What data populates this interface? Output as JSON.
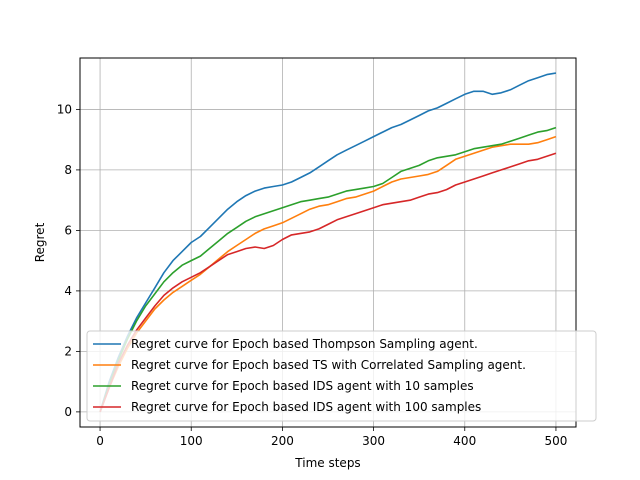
{
  "chart_data": {
    "type": "line",
    "title": "",
    "xlabel": "Time steps",
    "ylabel": "Regret",
    "xlim": [
      -22,
      522
    ],
    "ylim": [
      -0.5,
      11.7
    ],
    "xticks": [
      0,
      100,
      200,
      300,
      400,
      500
    ],
    "yticks": [
      0,
      2,
      4,
      6,
      8,
      10
    ],
    "grid": true,
    "legend_position": "lower-right",
    "series": [
      {
        "name": "Regret curve for Epoch based Thompson Sampling agent.",
        "color": "#1f77b4",
        "x": [
          0,
          10,
          20,
          30,
          40,
          50,
          60,
          70,
          80,
          90,
          100,
          110,
          120,
          130,
          140,
          150,
          160,
          170,
          180,
          190,
          200,
          210,
          220,
          230,
          240,
          250,
          260,
          270,
          280,
          290,
          300,
          310,
          320,
          330,
          340,
          350,
          360,
          370,
          380,
          390,
          400,
          410,
          420,
          430,
          440,
          450,
          460,
          470,
          480,
          490,
          500
        ],
        "values": [
          0.0,
          1.0,
          1.8,
          2.5,
          3.1,
          3.6,
          4.1,
          4.6,
          5.0,
          5.3,
          5.6,
          5.8,
          6.1,
          6.4,
          6.7,
          6.95,
          7.15,
          7.3,
          7.4,
          7.45,
          7.5,
          7.6,
          7.75,
          7.9,
          8.1,
          8.3,
          8.5,
          8.65,
          8.8,
          8.95,
          9.1,
          9.25,
          9.4,
          9.5,
          9.65,
          9.8,
          9.95,
          10.05,
          10.2,
          10.35,
          10.5,
          10.6,
          10.6,
          10.5,
          10.55,
          10.65,
          10.8,
          10.95,
          11.05,
          11.15,
          11.2
        ]
      },
      {
        "name": "Regret curve for Epoch based TS with Correlated Sampling agent.",
        "color": "#ff7f0e",
        "x": [
          0,
          10,
          20,
          30,
          40,
          50,
          60,
          70,
          80,
          90,
          100,
          110,
          120,
          130,
          140,
          150,
          160,
          170,
          180,
          190,
          200,
          210,
          220,
          230,
          240,
          250,
          260,
          270,
          280,
          290,
          300,
          310,
          320,
          330,
          340,
          350,
          360,
          370,
          380,
          390,
          400,
          410,
          420,
          430,
          440,
          450,
          460,
          470,
          480,
          490,
          500
        ],
        "values": [
          0.0,
          0.8,
          1.5,
          2.1,
          2.6,
          3.0,
          3.4,
          3.7,
          3.95,
          4.15,
          4.35,
          4.55,
          4.8,
          5.05,
          5.3,
          5.5,
          5.7,
          5.9,
          6.05,
          6.15,
          6.25,
          6.4,
          6.55,
          6.7,
          6.8,
          6.85,
          6.95,
          7.05,
          7.1,
          7.2,
          7.3,
          7.45,
          7.6,
          7.7,
          7.75,
          7.8,
          7.85,
          7.95,
          8.15,
          8.35,
          8.45,
          8.55,
          8.65,
          8.75,
          8.8,
          8.85,
          8.85,
          8.85,
          8.9,
          9.0,
          9.1
        ]
      },
      {
        "name": "Regret curve for Epoch based IDS agent with 10 samples",
        "color": "#2ca02c",
        "x": [
          0,
          10,
          20,
          30,
          40,
          50,
          60,
          70,
          80,
          90,
          100,
          110,
          120,
          130,
          140,
          150,
          160,
          170,
          180,
          190,
          200,
          210,
          220,
          230,
          240,
          250,
          260,
          270,
          280,
          290,
          300,
          310,
          320,
          330,
          340,
          350,
          360,
          370,
          380,
          390,
          400,
          410,
          420,
          430,
          440,
          450,
          460,
          470,
          480,
          490,
          500
        ],
        "values": [
          0.0,
          0.9,
          1.7,
          2.4,
          3.0,
          3.5,
          3.9,
          4.3,
          4.6,
          4.85,
          5.0,
          5.15,
          5.4,
          5.65,
          5.9,
          6.1,
          6.3,
          6.45,
          6.55,
          6.65,
          6.75,
          6.85,
          6.95,
          7.0,
          7.05,
          7.1,
          7.2,
          7.3,
          7.35,
          7.4,
          7.45,
          7.55,
          7.75,
          7.95,
          8.05,
          8.15,
          8.3,
          8.4,
          8.45,
          8.5,
          8.6,
          8.7,
          8.75,
          8.8,
          8.85,
          8.95,
          9.05,
          9.15,
          9.25,
          9.3,
          9.4
        ]
      },
      {
        "name": "Regret curve for Epoch based IDS agent with 100 samples",
        "color": "#d62728",
        "x": [
          0,
          10,
          20,
          30,
          40,
          50,
          60,
          70,
          80,
          90,
          100,
          110,
          120,
          130,
          140,
          150,
          160,
          170,
          180,
          190,
          200,
          210,
          220,
          230,
          240,
          250,
          260,
          270,
          280,
          290,
          300,
          310,
          320,
          330,
          340,
          350,
          360,
          370,
          380,
          390,
          400,
          410,
          420,
          430,
          440,
          450,
          460,
          470,
          480,
          490,
          500
        ],
        "values": [
          0.0,
          0.8,
          1.6,
          2.2,
          2.7,
          3.1,
          3.5,
          3.85,
          4.1,
          4.3,
          4.45,
          4.6,
          4.8,
          5.0,
          5.2,
          5.3,
          5.4,
          5.45,
          5.4,
          5.5,
          5.7,
          5.85,
          5.9,
          5.95,
          6.05,
          6.2,
          6.35,
          6.45,
          6.55,
          6.65,
          6.75,
          6.85,
          6.9,
          6.95,
          7.0,
          7.1,
          7.2,
          7.25,
          7.35,
          7.5,
          7.6,
          7.7,
          7.8,
          7.9,
          8.0,
          8.1,
          8.2,
          8.3,
          8.35,
          8.45,
          8.55
        ]
      }
    ]
  }
}
